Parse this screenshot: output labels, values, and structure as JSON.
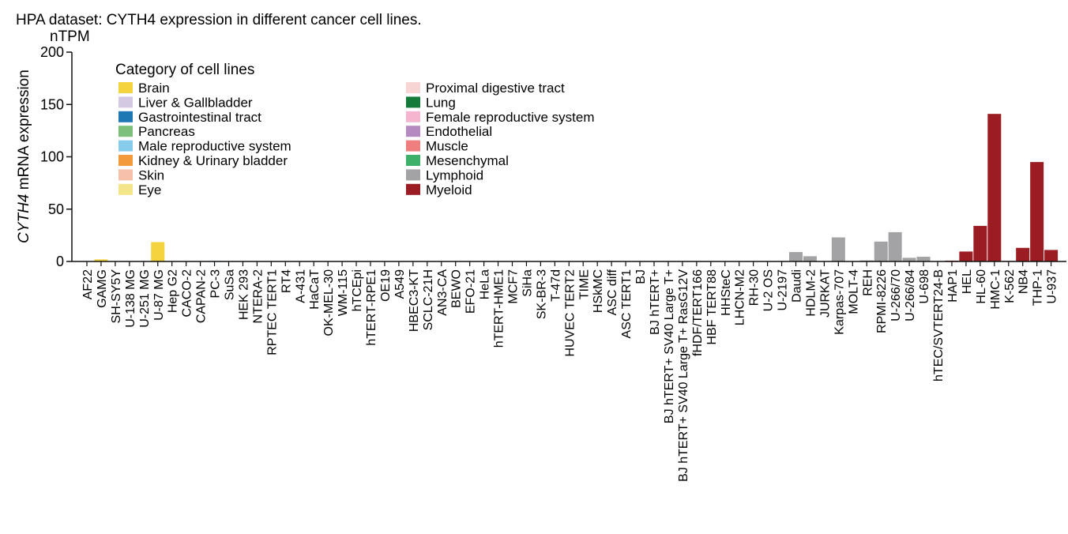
{
  "chart_data": {
    "type": "bar",
    "title": "HPA dataset: CYTH4 expression in different cancer cell lines.",
    "unit_label": "nTPM",
    "ylabel_gene": "CYTH4",
    "ylabel_rest": " mRNA expression",
    "ylim": [
      0,
      200
    ],
    "yticks": [
      0,
      50,
      100,
      150,
      200
    ],
    "legend": {
      "title": "Category of cell lines",
      "placement": "top-left",
      "entries": [
        {
          "name": "Brain",
          "color": "#f5d33f"
        },
        {
          "name": "Liver & Gallbladder",
          "color": "#d4c9e3"
        },
        {
          "name": "Gastrointestinal tract",
          "color": "#1f77b4"
        },
        {
          "name": "Pancreas",
          "color": "#7dbf7b"
        },
        {
          "name": "Male reproductive system",
          "color": "#87cdeb"
        },
        {
          "name": "Kidney & Urinary bladder",
          "color": "#f39a3c"
        },
        {
          "name": "Skin",
          "color": "#f6c0aa"
        },
        {
          "name": "Eye",
          "color": "#f3e58a"
        },
        {
          "name": "Proximal digestive tract",
          "color": "#f8d5d5"
        },
        {
          "name": "Lung",
          "color": "#167a3a"
        },
        {
          "name": "Female reproductive system",
          "color": "#f5b5cf"
        },
        {
          "name": "Endothelial",
          "color": "#b58ac0"
        },
        {
          "name": "Muscle",
          "color": "#ef7f7f"
        },
        {
          "name": "Mesenchymal",
          "color": "#3eb06a"
        },
        {
          "name": "Lymphoid",
          "color": "#a3a3a6"
        },
        {
          "name": "Myeloid",
          "color": "#9b1c22"
        }
      ]
    },
    "categories": [
      "AF22",
      "GAMG",
      "SH-SY5Y",
      "U-138 MG",
      "U-251 MG",
      "U-87 MG",
      "Hep G2",
      "CACO-2",
      "CAPAN-2",
      "PC-3",
      "SuSa",
      "HEK 293",
      "NTERA-2",
      "RPTEC TERT1",
      "RT4",
      "A-431",
      "HaCaT",
      "OK-MEL-30",
      "WM-115",
      "hTCEpi",
      "hTERT-RPE1",
      "OE19",
      "A549",
      "HBEC3-KT",
      "SCLC-21H",
      "AN3-CA",
      "BEWO",
      "EFO-21",
      "HeLa",
      "hTERT-HME1",
      "MCF7",
      "SiHa",
      "SK-BR-3",
      "T-47d",
      "HUVEC TERT2",
      "TIME",
      "HSkMC",
      "ASC diff",
      "ASC TERT1",
      "BJ",
      "BJ hTERT+",
      "BJ hTERT+ SV40 Large T+",
      "BJ hTERT+ SV40 Large T+ RasG12V",
      "fHDF/TERT166",
      "HBF TERT88",
      "HHSteC",
      "LHCN-M2",
      "RH-30",
      "U-2 OS",
      "U-2197",
      "Daudi",
      "HDLM-2",
      "JURKAT",
      "Karpas-707",
      "MOLT-4",
      "REH",
      "RPMI-8226",
      "U-266/70",
      "U-266/84",
      "U-698",
      "hTEC/SVTERT24-B",
      "HAP1",
      "HEL",
      "HL-60",
      "HMC-1",
      "K-562",
      "NB4",
      "THP-1",
      "U-937"
    ],
    "values": [
      0.1,
      2.0,
      0.3,
      0.2,
      0.2,
      18.5,
      0.1,
      0.1,
      0.3,
      0.6,
      0.4,
      0.1,
      0.1,
      0.1,
      0.1,
      0.1,
      0.1,
      0.1,
      0.1,
      0.1,
      0.1,
      0.1,
      0.1,
      0.1,
      0.1,
      0.1,
      0.1,
      0.1,
      0.1,
      0.1,
      0.1,
      0.1,
      0.1,
      0.1,
      0.1,
      0.1,
      0.1,
      0.1,
      0.1,
      0.1,
      0.1,
      0.1,
      0.1,
      0.1,
      0.1,
      0.1,
      0.1,
      0.1,
      0.1,
      0.1,
      9.0,
      5.0,
      0.3,
      23.0,
      0.2,
      1.0,
      19.0,
      28.0,
      3.5,
      4.5,
      0.3,
      0.8,
      9.5,
      34.0,
      141.0,
      0.5,
      13.0,
      95.0,
      11.0
    ],
    "category_index": [
      0,
      0,
      0,
      0,
      0,
      0,
      1,
      2,
      3,
      4,
      5,
      5,
      5,
      5,
      5,
      6,
      6,
      6,
      6,
      7,
      7,
      8,
      9,
      9,
      9,
      10,
      10,
      10,
      10,
      10,
      10,
      10,
      10,
      10,
      11,
      11,
      12,
      13,
      13,
      13,
      13,
      13,
      13,
      13,
      13,
      13,
      13,
      13,
      13,
      13,
      14,
      14,
      14,
      14,
      14,
      14,
      14,
      14,
      14,
      14,
      14,
      15,
      15,
      15,
      15,
      15,
      15,
      15,
      15
    ]
  }
}
